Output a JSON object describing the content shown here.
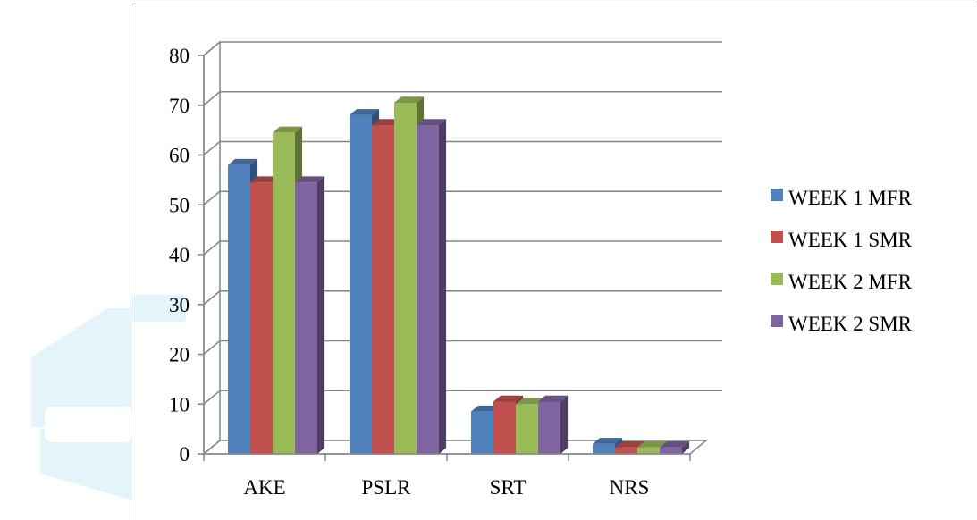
{
  "chart_data": {
    "type": "bar",
    "categories": [
      "AKE",
      "PSLR",
      "SRT",
      "NRS"
    ],
    "series": [
      {
        "name": "WEEK 1 MFR",
        "values": [
          58,
          68,
          8.5,
          2
        ]
      },
      {
        "name": "WEEK 1 SMR",
        "values": [
          54.5,
          66,
          10.5,
          1.3
        ]
      },
      {
        "name": "WEEK 2 MFR",
        "values": [
          64.5,
          70.5,
          10,
          1.3
        ]
      },
      {
        "name": "WEEK 2 SMR",
        "values": [
          54.5,
          66,
          10.5,
          1.3
        ]
      }
    ],
    "colors": [
      "#4f81bd",
      "#c0504d",
      "#9bbb59",
      "#8064a2"
    ],
    "ylim": [
      0,
      80
    ],
    "yticks": [
      "0",
      "10",
      "20",
      "30",
      "40",
      "50",
      "60",
      "70",
      "80"
    ],
    "grid": true,
    "legend_position": "right",
    "style": "3d clustered column"
  }
}
